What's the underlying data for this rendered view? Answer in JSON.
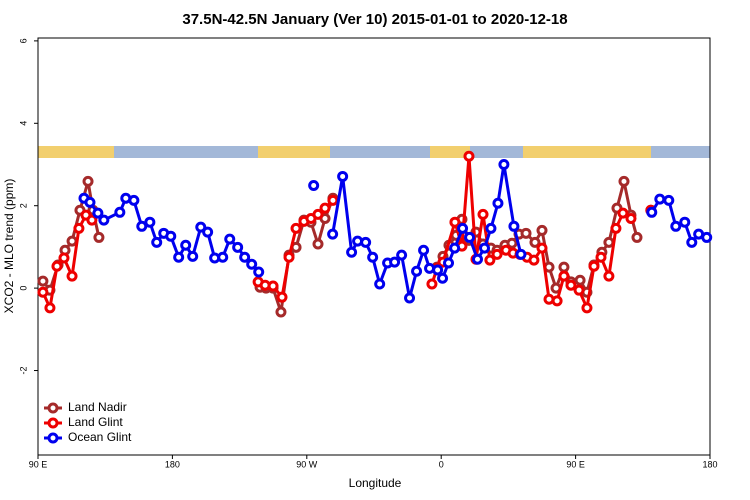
{
  "chart_data": {
    "type": "line",
    "title": "37.5N-42.5N January (Ver 10)   2015-01-01 to 2020-12-18",
    "x_label": "Longitude",
    "y_label": "XCO2 - MLO trend (ppm)",
    "xlim": [
      90,
      540
    ],
    "ylim": [
      -4.05,
      6.07
    ],
    "xticks": [
      {
        "value": 90,
        "label": "90 E"
      },
      180,
      {
        "value": 270,
        "label": "90 W"
      },
      {
        "value": 360,
        "label": "0"
      },
      {
        "value": 450,
        "label": "90 E"
      },
      {
        "value": 540,
        "label": "180"
      }
    ],
    "yticks": [
      -2,
      0,
      2,
      4,
      6
    ],
    "legend": "bottom-left",
    "series": [
      {
        "name": "Land Nadir",
        "color": "#a52a2a",
        "x": [
          93.3,
          98.0,
          103.4,
          108.1,
          112.8,
          118.1,
          123.5,
          126.8,
          130.8,
          null,
          238.7,
          242.7,
          247.4,
          252.7,
          258.1,
          262.8,
          268.1,
          272.8,
          277.5,
          282.2,
          287.5,
          null,
          357.2,
          361.2,
          365.2,
          369.9,
          373.9,
          378.6,
          383.3,
          388.0,
          393.3,
          397.4,
          402.7,
          407.4,
          412.1,
          416.8,
          422.8,
          427.5,
          432.2,
          436.9,
          442.2,
          446.9,
          453.0,
          457.6,
          462.3,
          467.6,
          472.3,
          477.7,
          482.4,
          487.1,
          491.1,
          null,
          500.4
        ],
        "values": [
          0.17,
          -0.05,
          0.56,
          0.92,
          1.14,
          1.89,
          2.59,
          1.89,
          1.23,
          null,
          0.02,
          0,
          0,
          -0.58,
          0.8,
          0.99,
          1.65,
          1.6,
          1.07,
          1.69,
          2.18,
          null,
          0.51,
          0.77,
          1.04,
          1.28,
          1.67,
          1.16,
          1.36,
          1.07,
          0.97,
          0.92,
          1.04,
          1.09,
          1.31,
          1.33,
          1.11,
          1.4,
          0.51,
          0,
          0.51,
          0.15,
          0.19,
          -0.1,
          0.56,
          0.87,
          1.11,
          1.94,
          2.59,
          1.77,
          1.23,
          null,
          1.89
        ]
      },
      {
        "name": "Land Glint",
        "color": "#ee0000",
        "x": [
          93.3,
          98.0,
          102.7,
          107.4,
          112.8,
          117.4,
          122.1,
          126.1,
          null,
          237.4,
          242.1,
          247.4,
          253.4,
          258.1,
          262.8,
          268.1,
          272.8,
          277.5,
          282.2,
          287.5,
          null,
          353.8,
          357.2,
          361.2,
          369.2,
          373.9,
          378.6,
          383.3,
          388.0,
          392.6,
          397.4,
          403.4,
          408.1,
          412.8,
          417.5,
          422.1,
          427.5,
          432.2,
          437.6,
          442.2,
          446.9,
          452.3,
          457.6,
          462.3,
          467.0,
          472.3,
          477.0,
          481.7,
          487.1,
          null,
          500.4
        ],
        "values": [
          -0.1,
          -0.48,
          0.53,
          0.73,
          0.29,
          1.45,
          1.77,
          1.65,
          null,
          0.15,
          0.07,
          0.05,
          -0.22,
          0.75,
          1.45,
          1.62,
          1.69,
          1.79,
          1.94,
          2.13,
          null,
          0.1,
          0.48,
          0.63,
          1.6,
          1.02,
          3.2,
          0.7,
          1.79,
          0.68,
          0.82,
          0.92,
          0.85,
          0.82,
          0.75,
          0.68,
          0.97,
          -0.27,
          -0.31,
          0.29,
          0.07,
          -0.05,
          -0.48,
          0.53,
          0.75,
          0.29,
          1.45,
          1.82,
          1.69,
          null,
          1.89
        ]
      },
      {
        "name": "Ocean Glint",
        "color": "#0000ee",
        "x": [
          120.8,
          124.8,
          130.1,
          134.1,
          144.8,
          148.8,
          154.2,
          159.5,
          164.9,
          169.5,
          174.2,
          178.9,
          184.2,
          188.9,
          193.6,
          199.0,
          203.6,
          208.3,
          213.7,
          218.4,
          223.7,
          228.4,
          233.1,
          237.8,
          null,
          274.6,
          null,
          287.3,
          294.0,
          300.0,
          304.0,
          309.4,
          314.1,
          318.8,
          324.1,
          328.8,
          333.5,
          338.8,
          343.5,
          348.2,
          352.2,
          357.6,
          360.9,
          364.9,
          369.0,
          374.3,
          379.0,
          384.3,
          389.0,
          393.3,
          398.0,
          402.0,
          408.7,
          413.4,
          null,
          501.0,
          506.4,
          512.4,
          517.1,
          523.1,
          527.8,
          532.4,
          537.8
        ],
        "values": [
          2.18,
          2.08,
          1.82,
          1.65,
          1.84,
          2.18,
          2.13,
          1.5,
          1.6,
          1.11,
          1.33,
          1.26,
          0.75,
          1.04,
          0.77,
          1.48,
          1.36,
          0.73,
          0.75,
          1.19,
          0.99,
          0.75,
          0.58,
          0.39,
          null,
          2.49,
          null,
          1.31,
          2.71,
          0.87,
          1.14,
          1.11,
          0.75,
          0.1,
          0.61,
          0.63,
          0.8,
          -0.24,
          0.41,
          0.92,
          0.48,
          0.44,
          0.24,
          0.61,
          0.97,
          1.45,
          1.23,
          0.7,
          0.97,
          1.45,
          2.06,
          3.0,
          1.5,
          0.82,
          null,
          1.84,
          2.16,
          2.13,
          1.5,
          1.6,
          1.11,
          1.31,
          1.23
        ]
      }
    ]
  }
}
